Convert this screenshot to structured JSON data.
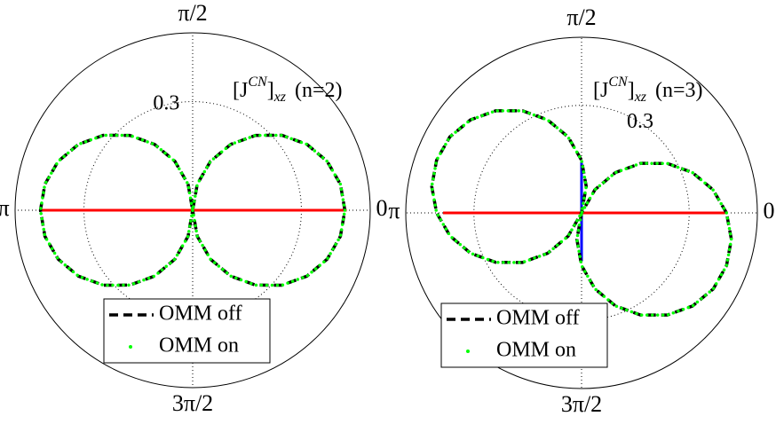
{
  "chart_data": [
    {
      "type": "polar",
      "title_parts": [
        "[J",
        "CN",
        "]",
        "xz",
        "(n=2)"
      ],
      "rlim": [
        0,
        0.49
      ],
      "rticks": [
        0.3
      ],
      "thetaticks": [
        {
          "value": 0,
          "label": "0"
        },
        {
          "value": 90,
          "label": "π/2"
        },
        {
          "value": 180,
          "label": "π"
        },
        {
          "value": 270,
          "label": "3π/2"
        }
      ],
      "grid": true,
      "legend": "lower center",
      "series": [
        {
          "color": "#ff0000",
          "style": "solid",
          "theta": [
            0,
            180
          ],
          "r": [
            0.425,
            0.418
          ]
        },
        {
          "name": "OMM off",
          "color": "#000000",
          "style": "dashed",
          "theta": [
            0,
            10,
            20,
            30,
            40,
            50,
            60,
            70,
            80,
            90,
            100,
            110,
            120,
            130,
            140,
            150,
            160,
            170,
            180,
            190,
            200,
            210,
            220,
            230,
            240,
            250,
            260,
            270,
            280,
            290,
            300,
            310,
            320,
            330,
            340,
            350,
            360
          ],
          "r": [
            0.42,
            0.414,
            0.395,
            0.364,
            0.322,
            0.27,
            0.21,
            0.144,
            0.073,
            0,
            0.073,
            0.144,
            0.21,
            0.27,
            0.322,
            0.364,
            0.395,
            0.414,
            0.42,
            0.414,
            0.395,
            0.364,
            0.322,
            0.27,
            0.21,
            0.144,
            0.073,
            0,
            0.073,
            0.144,
            0.21,
            0.27,
            0.322,
            0.364,
            0.395,
            0.414,
            0.42
          ]
        },
        {
          "name": "OMM on",
          "color": "#00ff00",
          "style": "dotted",
          "theta": [
            0,
            10,
            20,
            30,
            40,
            50,
            60,
            70,
            80,
            90,
            100,
            110,
            120,
            130,
            140,
            150,
            160,
            170,
            180,
            190,
            200,
            210,
            220,
            230,
            240,
            250,
            260,
            270,
            280,
            290,
            300,
            310,
            320,
            330,
            340,
            350,
            360
          ],
          "r": [
            0.42,
            0.414,
            0.395,
            0.364,
            0.322,
            0.27,
            0.21,
            0.144,
            0.073,
            0,
            0.073,
            0.144,
            0.21,
            0.27,
            0.322,
            0.364,
            0.395,
            0.414,
            0.42,
            0.414,
            0.395,
            0.364,
            0.322,
            0.27,
            0.21,
            0.144,
            0.073,
            0,
            0.073,
            0.144,
            0.21,
            0.27,
            0.322,
            0.364,
            0.395,
            0.414,
            0.42
          ]
        }
      ]
    },
    {
      "type": "polar",
      "title_parts": [
        "[J",
        "CN",
        "]",
        "xz",
        "(n=3)"
      ],
      "rlim": [
        0,
        0.49
      ],
      "rticks": [
        0.3
      ],
      "thetaticks": [
        {
          "value": 0,
          "label": "0"
        },
        {
          "value": 90,
          "label": "π/2"
        },
        {
          "value": 180,
          "label": "π"
        },
        {
          "value": 270,
          "label": "3π/2"
        }
      ],
      "grid": true,
      "legend": "lower center",
      "series": [
        {
          "color": "#ff0000",
          "style": "solid",
          "theta": [
            0,
            180
          ],
          "r": [
            0.4,
            0.386
          ]
        },
        {
          "color": "#0000ff",
          "style": "solid",
          "theta": [
            90,
            270
          ],
          "r": [
            0.145,
            0.135
          ]
        },
        {
          "name": "OMM off",
          "color": "#000000",
          "style": "dashed",
          "theta": [
            0,
            10,
            20,
            30,
            40,
            50,
            60,
            70,
            80,
            90,
            100,
            110,
            120,
            130,
            140,
            150,
            160,
            170,
            180,
            190,
            200,
            210,
            220,
            230,
            240,
            250,
            260,
            270,
            280,
            290,
            300,
            310,
            320,
            330,
            340,
            350,
            360
          ],
          "r": [
            0.404,
            0.372,
            0.329,
            0.276,
            0.215,
            0.147,
            0.075,
            0,
            0.075,
            0.147,
            0.215,
            0.276,
            0.329,
            0.372,
            0.404,
            0.424,
            0.43,
            0.424,
            0.404,
            0.372,
            0.329,
            0.276,
            0.215,
            0.147,
            0.075,
            0,
            0.075,
            0.147,
            0.215,
            0.276,
            0.329,
            0.372,
            0.404,
            0.424,
            0.43,
            0.424,
            0.404
          ]
        },
        {
          "name": "OMM on",
          "color": "#00ff00",
          "style": "dotted",
          "theta": [
            0,
            10,
            20,
            30,
            40,
            50,
            60,
            70,
            80,
            90,
            100,
            110,
            120,
            130,
            140,
            150,
            160,
            170,
            180,
            190,
            200,
            210,
            220,
            230,
            240,
            250,
            260,
            270,
            280,
            290,
            300,
            310,
            320,
            330,
            340,
            350,
            360
          ],
          "r": [
            0.404,
            0.372,
            0.329,
            0.276,
            0.215,
            0.147,
            0.075,
            0,
            0.075,
            0.147,
            0.215,
            0.276,
            0.329,
            0.372,
            0.404,
            0.424,
            0.43,
            0.424,
            0.404,
            0.372,
            0.329,
            0.276,
            0.215,
            0.147,
            0.075,
            0,
            0.075,
            0.147,
            0.215,
            0.276,
            0.329,
            0.372,
            0.404,
            0.424,
            0.43,
            0.424,
            0.404
          ]
        }
      ]
    }
  ]
}
